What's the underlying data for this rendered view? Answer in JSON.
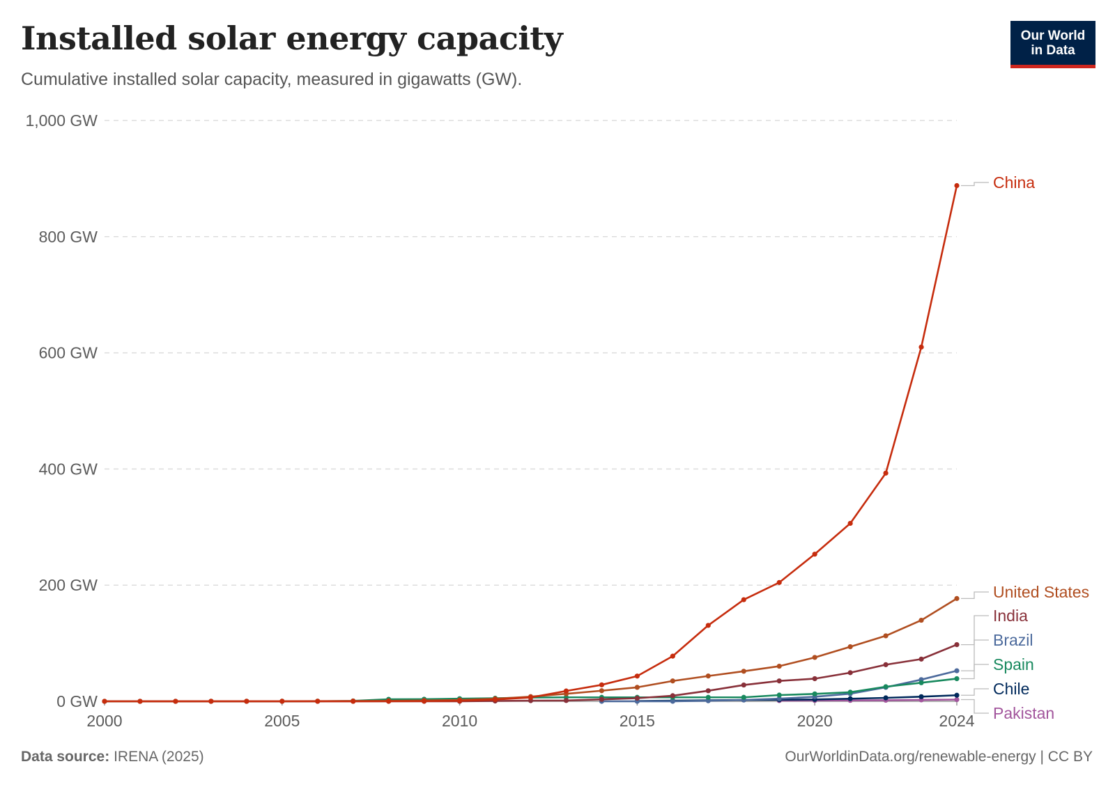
{
  "header": {
    "title": "Installed solar energy capacity",
    "subtitle": "Cumulative installed solar capacity, measured in gigawatts (GW).",
    "logo_line1": "Our World",
    "logo_line2": "in Data"
  },
  "footer": {
    "source_label": "Data source:",
    "source_value": "IRENA (2025)",
    "url": "OurWorldinData.org/renewable-energy | CC BY"
  },
  "chart_data": {
    "type": "line",
    "title": "Installed solar energy capacity",
    "subtitle": "Cumulative installed solar capacity, measured in gigawatts (GW).",
    "ylim": [
      0,
      1000
    ],
    "xlim": [
      2000,
      2024
    ],
    "yticks": [
      {
        "value": 0,
        "label": "0 GW"
      },
      {
        "value": 200,
        "label": "200 GW"
      },
      {
        "value": 400,
        "label": "400 GW"
      },
      {
        "value": 600,
        "label": "600 GW"
      },
      {
        "value": 800,
        "label": "800 GW"
      },
      {
        "value": 1000,
        "label": "1,000 GW"
      }
    ],
    "xticks": [
      {
        "value": 2000,
        "label": "2000"
      },
      {
        "value": 2005,
        "label": "2005"
      },
      {
        "value": 2010,
        "label": "2010"
      },
      {
        "value": 2015,
        "label": "2015"
      },
      {
        "value": 2020,
        "label": "2020"
      },
      {
        "value": 2024,
        "label": "2024"
      }
    ],
    "grid": true,
    "legend": "end-of-line labels",
    "series": [
      {
        "name": "Pakistan",
        "color": "#a2559c",
        "x": [
          2019,
          2020,
          2021,
          2022,
          2023,
          2024
        ],
        "y": [
          1.3,
          1.5,
          1.6,
          1.9,
          2.5,
          3.0
        ]
      },
      {
        "name": "Chile",
        "color": "#00295b",
        "x": [
          2015,
          2016,
          2017,
          2018,
          2019,
          2020,
          2021,
          2022,
          2023,
          2024
        ],
        "y": [
          0.6,
          1.1,
          1.8,
          2.3,
          2.7,
          3.2,
          4.5,
          6.0,
          8.0,
          10.5
        ]
      },
      {
        "name": "Brazil",
        "color": "#4c6a9c",
        "x": [
          2014,
          2015,
          2016,
          2017,
          2018,
          2019,
          2020,
          2021,
          2022,
          2023,
          2024
        ],
        "y": [
          0.02,
          0.04,
          0.1,
          1.0,
          2.4,
          4.6,
          7.9,
          13.1,
          24.1,
          37.4,
          52.6
        ]
      },
      {
        "name": "Spain",
        "color": "#18895e",
        "x": [
          2000,
          2001,
          2002,
          2003,
          2004,
          2005,
          2006,
          2007,
          2008,
          2009,
          2010,
          2011,
          2012,
          2013,
          2014,
          2015,
          2016,
          2017,
          2018,
          2019,
          2020,
          2021,
          2022,
          2023,
          2024
        ],
        "y": [
          0.01,
          0.01,
          0.02,
          0.03,
          0.04,
          0.05,
          0.15,
          0.7,
          3.5,
          3.7,
          4.6,
          5.4,
          6.5,
          6.9,
          6.9,
          6.9,
          6.9,
          6.9,
          6.9,
          10.8,
          12.8,
          15.7,
          25.2,
          32.0,
          39.0
        ]
      },
      {
        "name": "India",
        "color": "#883039",
        "x": [
          2001,
          2002,
          2003,
          2004,
          2005,
          2006,
          2007,
          2008,
          2009,
          2010,
          2011,
          2012,
          2013,
          2014,
          2015,
          2016,
          2017,
          2018,
          2019,
          2020,
          2021,
          2022,
          2023,
          2024
        ],
        "y": [
          0.01,
          0.01,
          0.01,
          0.01,
          0.01,
          0.01,
          0.01,
          0.01,
          0.02,
          0.05,
          0.6,
          1.2,
          1.4,
          3.4,
          5.4,
          9.7,
          18.2,
          28.1,
          35.1,
          39.0,
          49.3,
          63.1,
          72.7,
          97.6
        ]
      },
      {
        "name": "United States",
        "color": "#b04e20",
        "x": [
          2000,
          2001,
          2002,
          2003,
          2004,
          2005,
          2006,
          2007,
          2008,
          2009,
          2010,
          2011,
          2012,
          2013,
          2014,
          2015,
          2016,
          2017,
          2018,
          2019,
          2020,
          2021,
          2022,
          2023,
          2024
        ],
        "y": [
          0.1,
          0.1,
          0.1,
          0.2,
          0.2,
          0.3,
          0.4,
          0.6,
          0.9,
          1.4,
          2.3,
          4.5,
          8.1,
          13.0,
          18.3,
          24.1,
          35.1,
          43.6,
          51.8,
          60.5,
          75.6,
          94.0,
          112.8,
          139.6,
          177.0
        ]
      },
      {
        "name": "China",
        "color": "#c62c0d",
        "x": [
          2000,
          2001,
          2002,
          2003,
          2004,
          2005,
          2006,
          2007,
          2008,
          2009,
          2010,
          2011,
          2012,
          2013,
          2014,
          2015,
          2016,
          2017,
          2018,
          2019,
          2020,
          2021,
          2022,
          2023,
          2024
        ],
        "y": [
          0.02,
          0.02,
          0.03,
          0.04,
          0.06,
          0.07,
          0.08,
          0.1,
          0.14,
          0.3,
          1.0,
          3.1,
          6.7,
          17.8,
          28.4,
          43.5,
          77.8,
          130.8,
          175.0,
          204.6,
          253.4,
          306.4,
          392.9,
          609.9,
          887.9
        ]
      }
    ]
  }
}
